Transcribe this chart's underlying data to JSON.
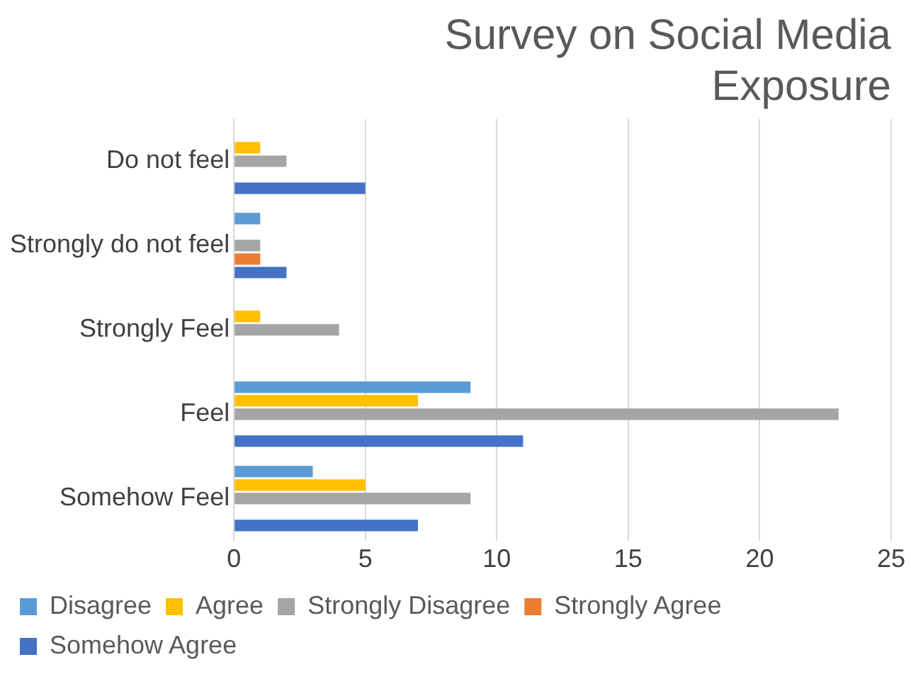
{
  "chart_data": {
    "type": "bar",
    "orientation": "horizontal",
    "title": "Survey on Social Media Exposure",
    "categories": [
      "Do not feel",
      "Strongly do not feel",
      "Strongly Feel",
      "Feel",
      "Somehow Feel"
    ],
    "series": [
      {
        "name": "Disagree",
        "color": "#5b9bd5",
        "values": [
          0,
          1,
          0,
          9,
          3
        ]
      },
      {
        "name": "Agree",
        "color": "#ffc000",
        "values": [
          1,
          0,
          1,
          7,
          5
        ]
      },
      {
        "name": "Strongly Disagree",
        "color": "#a5a5a5",
        "values": [
          2,
          1,
          4,
          23,
          9
        ]
      },
      {
        "name": "Strongly Agree",
        "color": "#ed7d31",
        "values": [
          0,
          1,
          0,
          0,
          0
        ]
      },
      {
        "name": "Somehow Agree",
        "color": "#4472c4",
        "values": [
          5,
          2,
          0,
          11,
          7
        ]
      }
    ],
    "xlim": [
      0,
      25
    ],
    "xticks": [
      0,
      5,
      10,
      15,
      20,
      25
    ],
    "grid": "x",
    "legend": "bottom"
  }
}
